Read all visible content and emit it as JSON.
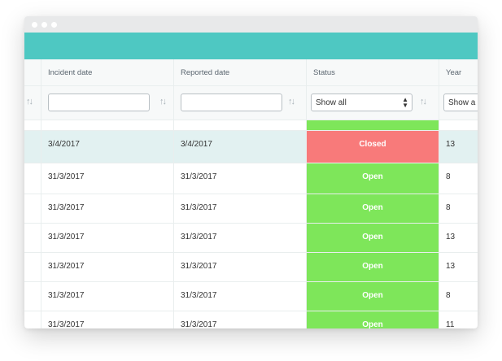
{
  "columns": [
    {
      "label": "Incident date"
    },
    {
      "label": "Reported date"
    },
    {
      "label": "Status"
    },
    {
      "label": "Year"
    }
  ],
  "filters": {
    "incident_value": "",
    "reported_value": "",
    "status_value": "Show all",
    "year_value": "Show a"
  },
  "rows": [
    {
      "incident": "3/4/2017",
      "reported": "3/4/2017",
      "status": "Closed",
      "year": "13"
    },
    {
      "incident": "31/3/2017",
      "reported": "31/3/2017",
      "status": "Open",
      "year": "8"
    },
    {
      "incident": "31/3/2017",
      "reported": "31/3/2017",
      "status": "Open",
      "year": "8"
    },
    {
      "incident": "31/3/2017",
      "reported": "31/3/2017",
      "status": "Open",
      "year": "13"
    },
    {
      "incident": "31/3/2017",
      "reported": "31/3/2017",
      "status": "Open",
      "year": "13"
    },
    {
      "incident": "31/3/2017",
      "reported": "31/3/2017",
      "status": "Open",
      "year": "8"
    },
    {
      "incident": "31/3/2017",
      "reported": "31/3/2017",
      "status": "Open",
      "year": "11"
    }
  ],
  "colors": {
    "header_bar": "#4ec8c2",
    "status_open": "#7ee65a",
    "status_closed": "#f87a7a",
    "selected_row": "#e2f1f1"
  },
  "icons": {
    "sort": "sort-arrows-icon",
    "select_caret": "updown-caret-icon"
  }
}
